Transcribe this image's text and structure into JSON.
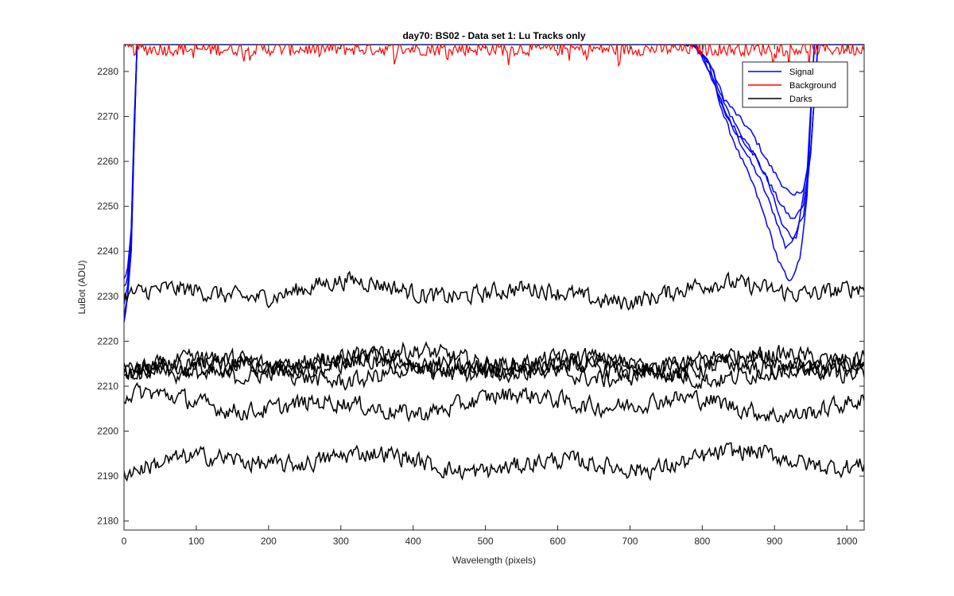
{
  "chart_data": {
    "type": "line",
    "title": "day70: BS02 - Data set 1: Lu Tracks only",
    "xlabel": "Wavelength (pixels)",
    "ylabel": "LuBot (ADU)",
    "xlim": [
      0,
      1024
    ],
    "ylim": [
      2178,
      2286
    ],
    "xticks": [
      0,
      100,
      200,
      300,
      400,
      500,
      600,
      700,
      800,
      900,
      1000
    ],
    "yticks": [
      2180,
      2190,
      2200,
      2210,
      2220,
      2230,
      2240,
      2250,
      2260,
      2270,
      2280
    ],
    "grid": false,
    "legend": {
      "position": "top-right",
      "entries": [
        "Signal",
        "Background",
        "Darks"
      ]
    },
    "colors": {
      "Signal": "#0000ff",
      "Background": "#ff0000",
      "Darks": "#000000"
    },
    "series": [
      {
        "name": "Signal",
        "group": "Signal",
        "values_x": [
          0,
          5,
          10,
          14,
          18,
          780,
          800,
          820,
          840,
          860,
          880,
          900,
          915,
          930,
          945,
          955,
          965,
          1024
        ],
        "values_y": [
          2224,
          2230,
          2240,
          2265,
          2286,
          2286,
          2284,
          2276,
          2268,
          2262,
          2256,
          2248,
          2241,
          2243,
          2258,
          2286,
          2286,
          2286
        ]
      },
      {
        "name": "Signal",
        "group": "Signal",
        "values_x": [
          0,
          5,
          10,
          14,
          18,
          790,
          810,
          830,
          850,
          870,
          890,
          910,
          925,
          940,
          950,
          960,
          1024
        ],
        "values_y": [
          2234,
          2236,
          2245,
          2268,
          2286,
          2286,
          2282,
          2274,
          2270,
          2266,
          2260,
          2255,
          2252,
          2254,
          2262,
          2286,
          2286
        ]
      },
      {
        "name": "Signal",
        "group": "Signal",
        "values_x": [
          0,
          5,
          10,
          14,
          18,
          790,
          810,
          830,
          850,
          870,
          890,
          910,
          925,
          940,
          950,
          960,
          1024
        ],
        "values_y": [
          2228,
          2232,
          2242,
          2266,
          2286,
          2286,
          2280,
          2271,
          2266,
          2262,
          2256,
          2250,
          2247,
          2250,
          2262,
          2286,
          2286
        ]
      },
      {
        "name": "Signal",
        "group": "Signal",
        "values_x": [
          0,
          5,
          10,
          14,
          18,
          790,
          810,
          830,
          850,
          870,
          890,
          905,
          920,
          935,
          945,
          955,
          1024
        ],
        "values_y": [
          2226,
          2230,
          2240,
          2264,
          2286,
          2286,
          2281,
          2270,
          2262,
          2255,
          2246,
          2238,
          2233,
          2238,
          2252,
          2286,
          2286
        ]
      },
      {
        "name": "Signal",
        "group": "Signal",
        "values_x": [
          0,
          5,
          10,
          14,
          18,
          790,
          810,
          830,
          850,
          870,
          890,
          910,
          925,
          940,
          950,
          960,
          1024
        ],
        "values_y": [
          2232,
          2234,
          2244,
          2267,
          2286,
          2286,
          2282,
          2273,
          2267,
          2262,
          2256,
          2246,
          2243,
          2248,
          2262,
          2286,
          2286
        ]
      },
      {
        "name": "Background",
        "group": "Background",
        "level": 2285,
        "noise": 3,
        "dips": 1
      },
      {
        "name": "Darks",
        "group": "Darks",
        "level": 2231,
        "wave": 2.5,
        "noise": 2.5
      },
      {
        "name": "Darks",
        "group": "Darks",
        "level": 2215.5,
        "wave": 2.5,
        "noise": 2.5
      },
      {
        "name": "Darks",
        "group": "Darks",
        "level": 2214.5,
        "wave": 2.5,
        "noise": 2.5
      },
      {
        "name": "Darks",
        "group": "Darks",
        "level": 2214,
        "wave": 2.5,
        "noise": 2.5
      },
      {
        "name": "Darks",
        "group": "Darks",
        "level": 2213.5,
        "wave": 2.5,
        "noise": 2.5
      },
      {
        "name": "Darks",
        "group": "Darks",
        "level": 2206,
        "wave": 2.5,
        "noise": 2.5
      },
      {
        "name": "Darks",
        "group": "Darks",
        "level": 2193,
        "wave": 2.5,
        "noise": 2.5
      }
    ]
  }
}
